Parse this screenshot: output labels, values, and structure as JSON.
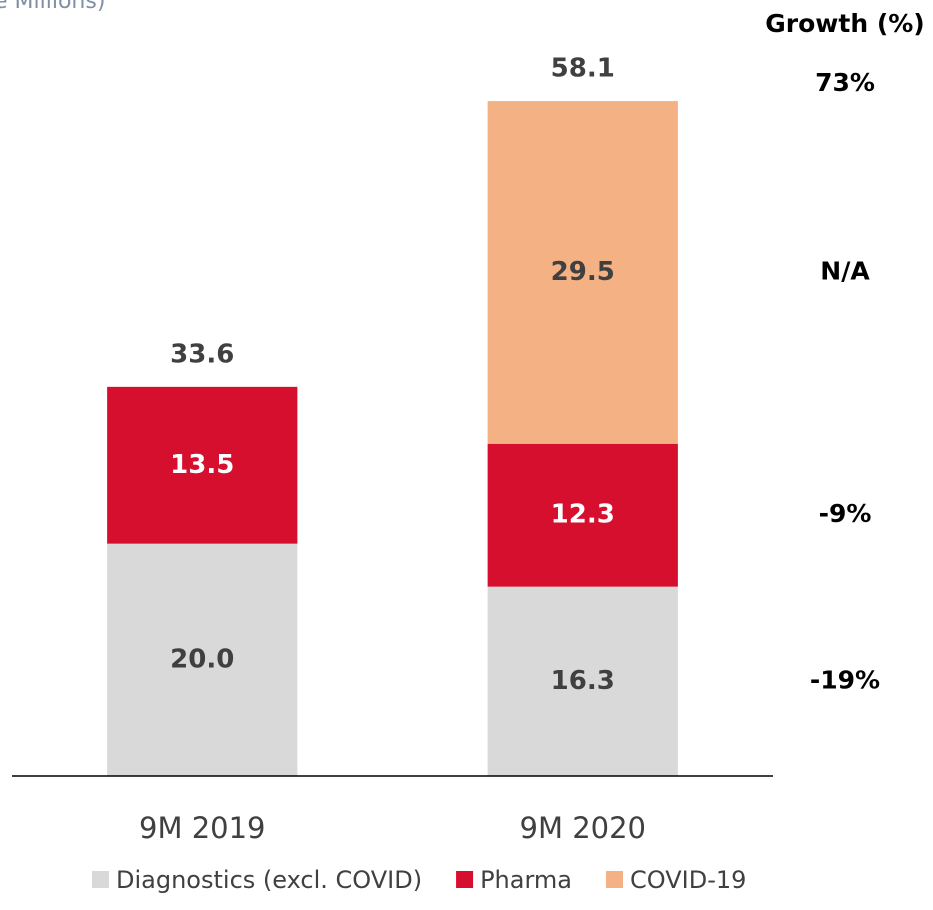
{
  "chart_data": {
    "type": "stacked_bar",
    "title": "e Millions)",
    "categories": [
      "9M 2019",
      "9M 2020"
    ],
    "series": [
      {
        "name": "Diagnostics (excl. COVID)",
        "color": "#d9d9d9",
        "values": [
          20.0,
          16.3
        ],
        "value_labels": [
          "20.0",
          "16.3"
        ]
      },
      {
        "name": "Pharma",
        "color": "#d50f2d",
        "values": [
          13.5,
          12.3
        ],
        "value_labels": [
          "13.5",
          "12.3"
        ]
      },
      {
        "name": "COVID-19",
        "color": "#f4b183",
        "values": [
          null,
          29.5
        ],
        "value_labels": [
          null,
          "29.5"
        ]
      }
    ],
    "totals": [
      33.6,
      58.1
    ],
    "growth": {
      "title": "Growth (%)",
      "values": [
        -19,
        -9,
        null,
        73
      ],
      "value_labels": [
        "-19%",
        "-9%",
        "N/A",
        "73%"
      ]
    },
    "ylim": [
      0,
      60
    ],
    "legend": "bottom"
  }
}
